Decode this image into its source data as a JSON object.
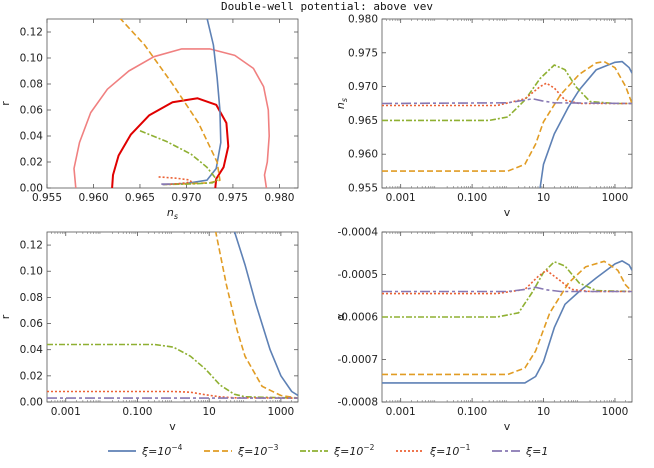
{
  "figure": {
    "title": "Double-well potential: above vev"
  },
  "colors": {
    "series": [
      "#5e81b5",
      "#e19c24",
      "#8fb032",
      "#eb6235",
      "#8778b3"
    ],
    "contour_outer": "#f08080",
    "contour_inner": "#e00000"
  },
  "legend": {
    "placement": "bottom-center",
    "items": [
      {
        "prefix": "ξ=10",
        "sup": "−4"
      },
      {
        "prefix": "ξ=10",
        "sup": "−3"
      },
      {
        "prefix": "ξ=10",
        "sup": "−2"
      },
      {
        "prefix": "ξ=10",
        "sup": "−1"
      },
      {
        "prefix": "ξ=1",
        "sup": ""
      }
    ]
  },
  "chart_data": [
    {
      "type": "line",
      "panel": "top-left",
      "xlabel": "n_s",
      "ylabel": "r",
      "xlim": [
        0.955,
        0.982
      ],
      "ylim": [
        0,
        0.13
      ],
      "xticks": [
        0.955,
        0.96,
        0.965,
        0.97,
        0.975,
        0.98
      ],
      "xtick_labels": [
        "0.955",
        "0.960",
        "0.965",
        "0.970",
        "0.975",
        "0.980"
      ],
      "yticks": [
        0,
        0.02,
        0.04,
        0.06,
        0.08,
        0.1,
        0.12
      ],
      "ytick_labels": [
        "0.00",
        "0.02",
        "0.04",
        "0.06",
        "0.08",
        "0.10",
        "0.12"
      ],
      "contours": [
        {
          "level": "outer",
          "points": [
            [
              0.9581,
              0
            ],
            [
              0.9579,
              0.015
            ],
            [
              0.9585,
              0.035
            ],
            [
              0.9597,
              0.058
            ],
            [
              0.9615,
              0.076
            ],
            [
              0.9638,
              0.09
            ],
            [
              0.9665,
              0.101
            ],
            [
              0.9695,
              0.107
            ],
            [
              0.9725,
              0.107
            ],
            [
              0.9752,
              0.102
            ],
            [
              0.9772,
              0.092
            ],
            [
              0.9783,
              0.078
            ],
            [
              0.9788,
              0.06
            ],
            [
              0.9789,
              0.04
            ],
            [
              0.9787,
              0.02
            ],
            [
              0.9784,
              0.01
            ],
            [
              0.9786,
              0
            ]
          ]
        },
        {
          "level": "inner",
          "points": [
            [
              0.962,
              0
            ],
            [
              0.9621,
              0.01
            ],
            [
              0.9627,
              0.025
            ],
            [
              0.964,
              0.041
            ],
            [
              0.966,
              0.056
            ],
            [
              0.9685,
              0.066
            ],
            [
              0.9712,
              0.069
            ],
            [
              0.9732,
              0.064
            ],
            [
              0.9743,
              0.05
            ],
            [
              0.9745,
              0.032
            ],
            [
              0.974,
              0.016
            ],
            [
              0.9732,
              0.007
            ],
            [
              0.9731,
              0
            ]
          ]
        }
      ],
      "series": [
        {
          "points": [
            [
              0.9722,
              0.131
            ],
            [
              0.9729,
              0.11
            ],
            [
              0.9733,
              0.085
            ],
            [
              0.9736,
              0.06
            ],
            [
              0.9737,
              0.035
            ],
            [
              0.9732,
              0.015
            ],
            [
              0.9722,
              0.006
            ],
            [
              0.97,
              0.0035
            ],
            [
              0.9675,
              0.0028
            ]
          ]
        },
        {
          "points": [
            [
              0.9628,
              0.131
            ],
            [
              0.9655,
              0.11
            ],
            [
              0.9685,
              0.08
            ],
            [
              0.9713,
              0.05
            ],
            [
              0.9733,
              0.02
            ],
            [
              0.9736,
              0.006
            ],
            [
              0.9725,
              0.004
            ],
            [
              0.97,
              0.0032
            ],
            [
              0.9675,
              0.0028
            ]
          ]
        },
        {
          "points": [
            [
              0.965,
              0.044
            ],
            [
              0.9678,
              0.036
            ],
            [
              0.9705,
              0.026
            ],
            [
              0.9722,
              0.016
            ],
            [
              0.9733,
              0.006
            ],
            [
              0.9728,
              0.004
            ],
            [
              0.971,
              0.0032
            ],
            [
              0.9685,
              0.0028
            ],
            [
              0.9675,
              0.0028
            ]
          ]
        },
        {
          "points": [
            [
              0.967,
              0.0085
            ],
            [
              0.969,
              0.0075
            ],
            [
              0.9703,
              0.0062
            ],
            [
              0.9705,
              0.005
            ],
            [
              0.97,
              0.004
            ],
            [
              0.969,
              0.0032
            ],
            [
              0.9678,
              0.0028
            ]
          ]
        },
        {
          "points": [
            [
              0.9673,
              0.003
            ],
            [
              0.968,
              0.0031
            ],
            [
              0.9682,
              0.0029
            ],
            [
              0.9678,
              0.0028
            ],
            [
              0.9674,
              0.0028
            ]
          ]
        }
      ]
    },
    {
      "type": "line",
      "panel": "top-right",
      "xlabel": "v",
      "ylabel": "n_s",
      "xscale": "log",
      "xlim": [
        0.0003,
        3000
      ],
      "ylim": [
        0.955,
        0.98
      ],
      "xticks": [
        0.001,
        0.1,
        10,
        1000
      ],
      "xtick_labels": [
        "0.001",
        "0.100",
        "10",
        "1000"
      ],
      "yticks": [
        0.955,
        0.96,
        0.965,
        0.97,
        0.975,
        0.98
      ],
      "ytick_labels": [
        "0.955",
        "0.960",
        "0.965",
        "0.970",
        "0.975",
        "0.980"
      ],
      "series": [
        {
          "points": [
            [
              8,
              0.955
            ],
            [
              10,
              0.9585
            ],
            [
              20,
              0.963
            ],
            [
              50,
              0.967
            ],
            [
              100,
              0.9695
            ],
            [
              300,
              0.9725
            ],
            [
              1000,
              0.9736
            ],
            [
              1600,
              0.9737
            ],
            [
              2500,
              0.9728
            ],
            [
              3000,
              0.972
            ]
          ]
        },
        {
          "points": [
            [
              0.0003,
              0.9575
            ],
            [
              1,
              0.9575
            ],
            [
              3,
              0.9585
            ],
            [
              6,
              0.9615
            ],
            [
              10,
              0.9648
            ],
            [
              30,
              0.9688
            ],
            [
              100,
              0.9718
            ],
            [
              300,
              0.9735
            ],
            [
              500,
              0.9737
            ],
            [
              1000,
              0.9728
            ],
            [
              2000,
              0.97
            ],
            [
              3000,
              0.9675
            ]
          ]
        },
        {
          "points": [
            [
              0.0003,
              0.965
            ],
            [
              0.3,
              0.965
            ],
            [
              1,
              0.9655
            ],
            [
              3,
              0.968
            ],
            [
              8,
              0.9712
            ],
            [
              20,
              0.9732
            ],
            [
              40,
              0.9725
            ],
            [
              80,
              0.97
            ],
            [
              200,
              0.9678
            ],
            [
              1000,
              0.9675
            ],
            [
              3000,
              0.9675
            ]
          ]
        },
        {
          "points": [
            [
              0.0003,
              0.9672
            ],
            [
              0.5,
              0.9672
            ],
            [
              3,
              0.9682
            ],
            [
              8,
              0.97
            ],
            [
              12,
              0.9705
            ],
            [
              20,
              0.9698
            ],
            [
              40,
              0.968
            ],
            [
              100,
              0.9675
            ],
            [
              3000,
              0.9675
            ]
          ]
        },
        {
          "points": [
            [
              0.0003,
              0.9675
            ],
            [
              1,
              0.9676
            ],
            [
              3,
              0.968
            ],
            [
              5,
              0.9682
            ],
            [
              9,
              0.9679
            ],
            [
              20,
              0.9676
            ],
            [
              3000,
              0.9675
            ]
          ]
        }
      ]
    },
    {
      "type": "line",
      "panel": "bottom-left",
      "xlabel": "v",
      "ylabel": "r",
      "xscale": "log",
      "xlim": [
        0.0003,
        3000
      ],
      "ylim": [
        0,
        0.13
      ],
      "xticks": [
        0.001,
        0.1,
        10,
        1000
      ],
      "xtick_labels": [
        "0.001",
        "0.100",
        "10",
        "1000"
      ],
      "yticks": [
        0,
        0.02,
        0.04,
        0.06,
        0.08,
        0.1,
        0.12
      ],
      "ytick_labels": [
        "0.00",
        "0.02",
        "0.04",
        "0.06",
        "0.08",
        "0.10",
        "0.12"
      ],
      "series": [
        {
          "points": [
            [
              50,
              0.131
            ],
            [
              100,
              0.105
            ],
            [
              200,
              0.075
            ],
            [
              500,
              0.04
            ],
            [
              1000,
              0.02
            ],
            [
              2000,
              0.008
            ],
            [
              3000,
              0.005
            ]
          ]
        },
        {
          "points": [
            [
              15,
              0.131
            ],
            [
              30,
              0.09
            ],
            [
              60,
              0.055
            ],
            [
              100,
              0.035
            ],
            [
              300,
              0.012
            ],
            [
              1000,
              0.005
            ],
            [
              3000,
              0.003
            ]
          ]
        },
        {
          "points": [
            [
              0.0003,
              0.044
            ],
            [
              0.3,
              0.044
            ],
            [
              1,
              0.042
            ],
            [
              3,
              0.035
            ],
            [
              8,
              0.025
            ],
            [
              20,
              0.013
            ],
            [
              50,
              0.006
            ],
            [
              100,
              0.004
            ],
            [
              3000,
              0.003
            ]
          ]
        },
        {
          "points": [
            [
              0.0003,
              0.008
            ],
            [
              1,
              0.008
            ],
            [
              3,
              0.0075
            ],
            [
              8,
              0.0055
            ],
            [
              20,
              0.004
            ],
            [
              50,
              0.0032
            ],
            [
              3000,
              0.003
            ]
          ]
        },
        {
          "points": [
            [
              0.0003,
              0.003
            ],
            [
              3000,
              0.003
            ]
          ]
        }
      ]
    },
    {
      "type": "line",
      "panel": "bottom-right",
      "xlabel": "v",
      "ylabel": "α",
      "xscale": "log",
      "xlim": [
        0.0003,
        3000
      ],
      "ylim": [
        -0.0008,
        -0.0004
      ],
      "xticks": [
        0.001,
        0.1,
        10,
        1000
      ],
      "xtick_labels": [
        "0.001",
        "0.100",
        "10",
        "1000"
      ],
      "yticks": [
        -0.0008,
        -0.0007,
        -0.0006,
        -0.0005,
        -0.0004
      ],
      "ytick_labels": [
        "-0.0008",
        "-0.0007",
        "-0.0006",
        "-0.0005",
        "-0.0004"
      ],
      "series": [
        {
          "points": [
            [
              0.0003,
              -0.000755
            ],
            [
              3,
              -0.000755
            ],
            [
              6,
              -0.00074
            ],
            [
              10,
              -0.000705
            ],
            [
              20,
              -0.000625
            ],
            [
              40,
              -0.00057
            ],
            [
              100,
              -0.00054
            ],
            [
              300,
              -0.000508
            ],
            [
              1000,
              -0.000475
            ],
            [
              1600,
              -0.000468
            ],
            [
              2500,
              -0.000478
            ],
            [
              3000,
              -0.00049
            ]
          ]
        },
        {
          "points": [
            [
              0.0003,
              -0.000735
            ],
            [
              1,
              -0.000735
            ],
            [
              3,
              -0.00072
            ],
            [
              6,
              -0.00068
            ],
            [
              15,
              -0.00059
            ],
            [
              50,
              -0.00052
            ],
            [
              150,
              -0.000482
            ],
            [
              500,
              -0.000469
            ],
            [
              1200,
              -0.00049
            ],
            [
              2000,
              -0.000525
            ],
            [
              3000,
              -0.00054
            ]
          ]
        },
        {
          "points": [
            [
              0.0003,
              -0.0006
            ],
            [
              0.5,
              -0.0006
            ],
            [
              2,
              -0.00059
            ],
            [
              5,
              -0.00054
            ],
            [
              10,
              -0.000495
            ],
            [
              20,
              -0.00047
            ],
            [
              40,
              -0.00048
            ],
            [
              100,
              -0.00052
            ],
            [
              300,
              -0.000538
            ],
            [
              3000,
              -0.00054
            ]
          ]
        },
        {
          "points": [
            [
              0.0003,
              -0.000545
            ],
            [
              0.5,
              -0.000545
            ],
            [
              3,
              -0.000535
            ],
            [
              7,
              -0.000505
            ],
            [
              12,
              -0.00049
            ],
            [
              25,
              -0.00051
            ],
            [
              60,
              -0.000535
            ],
            [
              200,
              -0.00054
            ],
            [
              3000,
              -0.00054
            ]
          ]
        },
        {
          "points": [
            [
              0.0003,
              -0.00054
            ],
            [
              1,
              -0.00054
            ],
            [
              3,
              -0.000535
            ],
            [
              6,
              -0.00053
            ],
            [
              12,
              -0.000536
            ],
            [
              30,
              -0.00054
            ],
            [
              3000,
              -0.00054
            ]
          ]
        }
      ]
    }
  ]
}
